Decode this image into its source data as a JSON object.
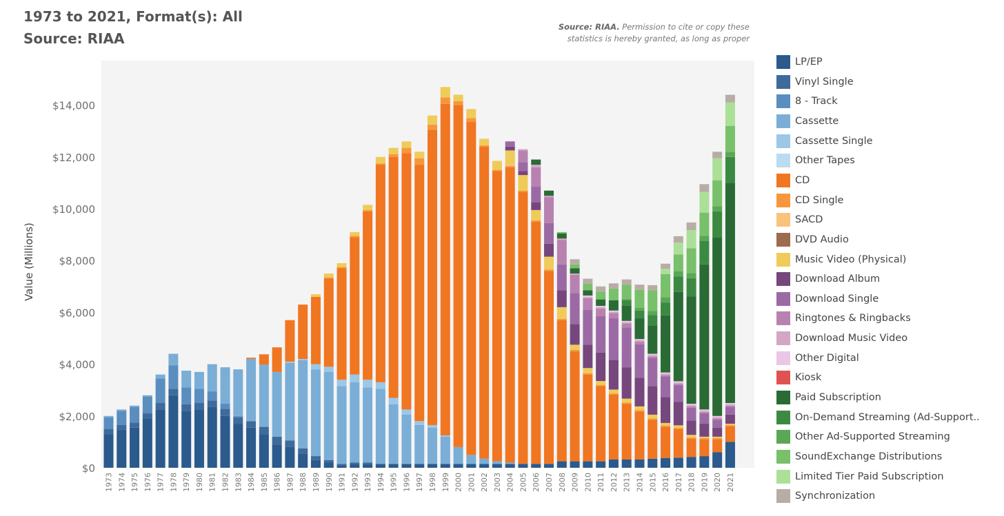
{
  "header": {
    "title_line1": "1973 to 2021, Format(s): All",
    "title_line2": "Source: RIAA",
    "note_bold": "Source: RIAA.",
    "note_rest_line1": " Permission to cite or copy these",
    "note_line2": "statistics is hereby granted, as long as proper"
  },
  "chart_data": {
    "type": "bar",
    "stacked": true,
    "ylabel": "Value (Millions)",
    "yticks": [
      0,
      2000,
      4000,
      6000,
      8000,
      10000,
      12000,
      14000
    ],
    "ytick_labels": [
      "$0",
      "$2,000",
      "$4,000",
      "$6,000",
      "$8,000",
      "$10,000",
      "$12,000",
      "$14,000"
    ],
    "ylim": [
      0,
      15600
    ],
    "grid": false,
    "legend_position": "right",
    "categories": [
      "1973",
      "1974",
      "1975",
      "1976",
      "1977",
      "1978",
      "1979",
      "1980",
      "1981",
      "1982",
      "1983",
      "1984",
      "1985",
      "1986",
      "1987",
      "1988",
      "1989",
      "1990",
      "1991",
      "1992",
      "1993",
      "1994",
      "1995",
      "1996",
      "1997",
      "1998",
      "1999",
      "2000",
      "2001",
      "2002",
      "2003",
      "2004",
      "2005",
      "2006",
      "2007",
      "2008",
      "2009",
      "2010",
      "2011",
      "2012",
      "2013",
      "2014",
      "2015",
      "2016",
      "2017",
      "2018",
      "2019",
      "2020",
      "2021"
    ],
    "series": [
      {
        "name": "LP/EP",
        "color": "#2b5a8c",
        "values": [
          1300,
          1450,
          1550,
          1900,
          2250,
          2800,
          2200,
          2250,
          2350,
          2000,
          1700,
          1550,
          1300,
          900,
          800,
          550,
          300,
          200,
          100,
          150,
          150,
          150,
          150,
          150,
          150,
          150,
          150,
          150,
          150,
          150,
          150,
          150,
          150,
          150,
          150,
          250,
          250,
          250,
          250,
          320,
          320,
          320,
          350,
          380,
          390,
          420,
          450,
          600,
          1000
        ]
      },
      {
        "name": "Vinyl Single",
        "color": "#3e6a9c",
        "values": [
          200,
          200,
          200,
          200,
          250,
          250,
          250,
          250,
          250,
          280,
          250,
          250,
          280,
          300,
          250,
          200,
          150,
          100,
          50,
          50,
          50,
          0,
          0,
          0,
          0,
          0,
          0,
          0,
          0,
          0,
          0,
          0,
          0,
          0,
          0,
          0,
          0,
          0,
          0,
          0,
          0,
          0,
          0,
          0,
          0,
          0,
          0,
          0,
          0
        ]
      },
      {
        "name": "8 - Track",
        "color": "#5a8ec0",
        "values": [
          450,
          550,
          600,
          650,
          950,
          900,
          650,
          550,
          350,
          200,
          50,
          0,
          0,
          0,
          0,
          0,
          0,
          0,
          0,
          0,
          0,
          0,
          0,
          0,
          0,
          0,
          0,
          0,
          0,
          0,
          0,
          0,
          0,
          0,
          0,
          0,
          0,
          0,
          0,
          0,
          0,
          0,
          0,
          0,
          0,
          0,
          0,
          0,
          0
        ]
      },
      {
        "name": "Cassette",
        "color": "#7aaed6",
        "values": [
          50,
          50,
          50,
          50,
          150,
          450,
          650,
          650,
          1050,
          1400,
          1800,
          2400,
          2400,
          2500,
          3000,
          3400,
          3350,
          3400,
          3000,
          3100,
          2900,
          2900,
          2300,
          1900,
          1500,
          1400,
          1050,
          650,
          350,
          200,
          100,
          50,
          0,
          0,
          0,
          0,
          0,
          0,
          0,
          0,
          0,
          0,
          0,
          0,
          0,
          0,
          0,
          0,
          0
        ]
      },
      {
        "name": "Cassette Single",
        "color": "#9dc7e6",
        "values": [
          0,
          0,
          0,
          0,
          0,
          0,
          0,
          0,
          0,
          0,
          0,
          0,
          0,
          0,
          50,
          50,
          200,
          200,
          250,
          300,
          300,
          250,
          250,
          200,
          150,
          100,
          50,
          0,
          0,
          0,
          0,
          0,
          0,
          0,
          0,
          0,
          0,
          0,
          0,
          0,
          0,
          0,
          0,
          0,
          0,
          0,
          0,
          0,
          0
        ]
      },
      {
        "name": "Other Tapes",
        "color": "#b9dcf2",
        "values": [
          0,
          0,
          0,
          0,
          0,
          0,
          0,
          0,
          0,
          0,
          0,
          0,
          0,
          0,
          0,
          0,
          0,
          0,
          0,
          0,
          0,
          0,
          0,
          0,
          0,
          0,
          0,
          0,
          0,
          0,
          0,
          0,
          0,
          0,
          0,
          0,
          0,
          0,
          0,
          0,
          0,
          0,
          0,
          0,
          0,
          0,
          0,
          0,
          0
        ]
      },
      {
        "name": "CD",
        "color": "#f07622",
        "values": [
          0,
          0,
          0,
          0,
          0,
          0,
          0,
          0,
          0,
          0,
          0,
          50,
          400,
          950,
          1600,
          2100,
          2600,
          3400,
          4300,
          5300,
          6500,
          8400,
          9300,
          9900,
          9900,
          11400,
          12800,
          13200,
          12850,
          12050,
          11200,
          11400,
          10500,
          9350,
          7450,
          5450,
          4250,
          3350,
          2900,
          2500,
          2150,
          1850,
          1500,
          1200,
          1100,
          700,
          650,
          500,
          600
        ]
      },
      {
        "name": "CD Single",
        "color": "#f7963c",
        "values": [
          0,
          0,
          0,
          0,
          0,
          0,
          0,
          0,
          0,
          0,
          0,
          0,
          0,
          0,
          0,
          0,
          0,
          50,
          50,
          50,
          50,
          50,
          100,
          200,
          250,
          200,
          250,
          150,
          150,
          50,
          50,
          50,
          50,
          50,
          50,
          50,
          50,
          50,
          50,
          50,
          50,
          50,
          50,
          50,
          50,
          50,
          50,
          50,
          50
        ]
      },
      {
        "name": "SACD",
        "color": "#fbc27c",
        "values": [
          0,
          0,
          0,
          0,
          0,
          0,
          0,
          0,
          0,
          0,
          0,
          0,
          0,
          0,
          0,
          0,
          0,
          0,
          0,
          0,
          0,
          0,
          0,
          0,
          0,
          0,
          0,
          0,
          0,
          0,
          0,
          50,
          0,
          0,
          0,
          0,
          0,
          0,
          0,
          0,
          0,
          0,
          0,
          0,
          0,
          0,
          0,
          0,
          0
        ]
      },
      {
        "name": "DVD Audio",
        "color": "#9c6b50",
        "values": [
          0,
          0,
          0,
          0,
          0,
          0,
          0,
          0,
          0,
          0,
          0,
          0,
          0,
          0,
          0,
          0,
          0,
          0,
          0,
          0,
          0,
          0,
          0,
          0,
          0,
          0,
          0,
          0,
          0,
          0,
          0,
          0,
          0,
          0,
          0,
          0,
          0,
          0,
          0,
          0,
          0,
          0,
          0,
          0,
          0,
          0,
          0,
          0,
          0
        ]
      },
      {
        "name": "Music Video (Physical)",
        "color": "#efcb5a",
        "values": [
          0,
          0,
          0,
          0,
          0,
          0,
          0,
          0,
          0,
          0,
          0,
          0,
          0,
          0,
          0,
          0,
          100,
          150,
          150,
          150,
          200,
          250,
          250,
          250,
          250,
          350,
          400,
          250,
          350,
          250,
          350,
          550,
          600,
          400,
          500,
          450,
          200,
          200,
          150,
          150,
          150,
          150,
          150,
          100,
          100,
          100,
          50,
          50,
          50
        ]
      },
      {
        "name": "Download Album",
        "color": "#76477c",
        "values": [
          0,
          0,
          0,
          0,
          0,
          0,
          0,
          0,
          0,
          0,
          0,
          0,
          0,
          0,
          0,
          0,
          0,
          0,
          0,
          0,
          0,
          0,
          0,
          0,
          0,
          0,
          0,
          0,
          0,
          0,
          0,
          150,
          150,
          300,
          500,
          650,
          800,
          900,
          1100,
          1150,
          1200,
          1100,
          1100,
          1000,
          900,
          550,
          500,
          350,
          350
        ]
      },
      {
        "name": "Download Single",
        "color": "#9b6aa5",
        "values": [
          0,
          0,
          0,
          0,
          0,
          0,
          0,
          0,
          0,
          0,
          0,
          0,
          0,
          0,
          0,
          0,
          0,
          0,
          0,
          0,
          0,
          0,
          0,
          0,
          0,
          0,
          0,
          0,
          0,
          0,
          0,
          200,
          350,
          600,
          800,
          1000,
          1200,
          1350,
          1400,
          1600,
          1550,
          1300,
          1100,
          800,
          650,
          500,
          400,
          300,
          300
        ]
      },
      {
        "name": "Ringtones & Ringbacks",
        "color": "#b882b0",
        "values": [
          0,
          0,
          0,
          0,
          0,
          0,
          0,
          0,
          0,
          0,
          0,
          0,
          0,
          0,
          0,
          0,
          0,
          0,
          0,
          0,
          0,
          0,
          0,
          0,
          0,
          0,
          0,
          0,
          0,
          0,
          0,
          0,
          450,
          750,
          1000,
          950,
          700,
          450,
          300,
          200,
          150,
          100,
          50,
          50,
          50,
          50,
          50,
          50,
          50
        ]
      },
      {
        "name": "Download Music Video",
        "color": "#d4a6c6",
        "values": [
          0,
          0,
          0,
          0,
          0,
          0,
          0,
          0,
          0,
          0,
          0,
          0,
          0,
          0,
          0,
          0,
          0,
          0,
          0,
          0,
          0,
          0,
          0,
          0,
          0,
          0,
          0,
          0,
          0,
          0,
          0,
          0,
          50,
          100,
          50,
          50,
          50,
          50,
          50,
          50,
          50,
          50,
          50,
          50,
          50,
          50,
          50,
          50,
          50
        ]
      },
      {
        "name": "Other Digital",
        "color": "#ebc7e6",
        "values": [
          0,
          0,
          0,
          0,
          0,
          0,
          0,
          0,
          0,
          0,
          0,
          0,
          0,
          0,
          0,
          0,
          0,
          0,
          0,
          0,
          0,
          0,
          0,
          0,
          0,
          0,
          0,
          0,
          0,
          0,
          0,
          0,
          0,
          0,
          0,
          0,
          0,
          50,
          50,
          50,
          50,
          50,
          50,
          50,
          50,
          50,
          50,
          50,
          50
        ]
      },
      {
        "name": "Kiosk",
        "color": "#e05252",
        "values": [
          0,
          0,
          0,
          0,
          0,
          0,
          0,
          0,
          0,
          0,
          0,
          0,
          0,
          0,
          0,
          0,
          0,
          0,
          0,
          0,
          0,
          0,
          0,
          0,
          0,
          0,
          0,
          0,
          0,
          0,
          0,
          0,
          0,
          0,
          0,
          0,
          0,
          0,
          0,
          0,
          0,
          0,
          0,
          0,
          0,
          0,
          0,
          0,
          0
        ]
      },
      {
        "name": "Paid Subscription",
        "color": "#2a6b35",
        "values": [
          0,
          0,
          0,
          0,
          0,
          0,
          0,
          0,
          0,
          0,
          0,
          0,
          0,
          0,
          0,
          0,
          0,
          0,
          0,
          0,
          0,
          0,
          0,
          0,
          0,
          0,
          0,
          0,
          0,
          0,
          0,
          0,
          0,
          200,
          200,
          200,
          200,
          200,
          250,
          400,
          600,
          800,
          1100,
          2200,
          3450,
          4150,
          5600,
          6900,
          8500
        ]
      },
      {
        "name": "On-Demand Streaming (Ad-Supported)",
        "color": "#3c8a42",
        "values": [
          0,
          0,
          0,
          0,
          0,
          0,
          0,
          0,
          0,
          0,
          0,
          0,
          0,
          0,
          0,
          0,
          0,
          0,
          0,
          0,
          0,
          0,
          0,
          0,
          0,
          0,
          0,
          0,
          0,
          0,
          0,
          0,
          0,
          0,
          0,
          0,
          0,
          0,
          0,
          0,
          200,
          300,
          400,
          500,
          600,
          700,
          900,
          1000,
          1000
        ]
      },
      {
        "name": "Other Ad-Supported Streaming",
        "color": "#5aa855",
        "values": [
          0,
          0,
          0,
          0,
          0,
          0,
          0,
          0,
          0,
          0,
          0,
          0,
          0,
          0,
          0,
          0,
          0,
          0,
          0,
          0,
          0,
          0,
          0,
          0,
          0,
          0,
          0,
          0,
          0,
          0,
          0,
          0,
          0,
          0,
          0,
          0,
          0,
          0,
          0,
          0,
          50,
          100,
          150,
          200,
          200,
          200,
          200,
          200,
          200
        ]
      },
      {
        "name": "SoundExchange Distributions",
        "color": "#78c06a",
        "values": [
          0,
          0,
          0,
          0,
          0,
          0,
          0,
          0,
          0,
          0,
          0,
          0,
          0,
          0,
          0,
          0,
          0,
          0,
          0,
          0,
          0,
          0,
          0,
          0,
          0,
          0,
          0,
          0,
          0,
          0,
          0,
          0,
          0,
          0,
          0,
          50,
          150,
          250,
          300,
          450,
          550,
          700,
          800,
          900,
          650,
          950,
          900,
          1000,
          1000
        ]
      },
      {
        "name": "Limited Tier Paid Subscription",
        "color": "#ace098",
        "values": [
          0,
          0,
          0,
          0,
          0,
          0,
          0,
          0,
          0,
          0,
          0,
          0,
          0,
          0,
          0,
          0,
          0,
          0,
          0,
          0,
          0,
          0,
          0,
          0,
          0,
          0,
          0,
          0,
          0,
          0,
          0,
          0,
          0,
          0,
          0,
          0,
          0,
          0,
          0,
          0,
          0,
          0,
          0,
          200,
          450,
          700,
          800,
          850,
          900
        ]
      },
      {
        "name": "Synchronization",
        "color": "#b8ada5",
        "values": [
          0,
          0,
          0,
          0,
          0,
          0,
          0,
          0,
          0,
          0,
          0,
          0,
          0,
          0,
          0,
          0,
          0,
          0,
          0,
          0,
          0,
          0,
          0,
          0,
          0,
          0,
          0,
          0,
          0,
          0,
          0,
          0,
          0,
          0,
          0,
          0,
          200,
          200,
          200,
          200,
          200,
          200,
          200,
          200,
          250,
          300,
          300,
          250,
          300
        ]
      }
    ]
  },
  "legend_labels": [
    "LP/EP",
    "Vinyl Single",
    "8 - Track",
    "Cassette",
    "Cassette Single",
    "Other Tapes",
    "CD",
    "CD Single",
    "SACD",
    "DVD Audio",
    "Music Video (Physical)",
    "Download Album",
    "Download Single",
    "Ringtones & Ringbacks",
    "Download Music Video",
    "Other Digital",
    "Kiosk",
    "Paid Subscription",
    "On-Demand Streaming (Ad-Support..",
    "Other Ad-Supported Streaming",
    "SoundExchange Distributions",
    "Limited Tier Paid Subscription",
    "Synchronization"
  ]
}
